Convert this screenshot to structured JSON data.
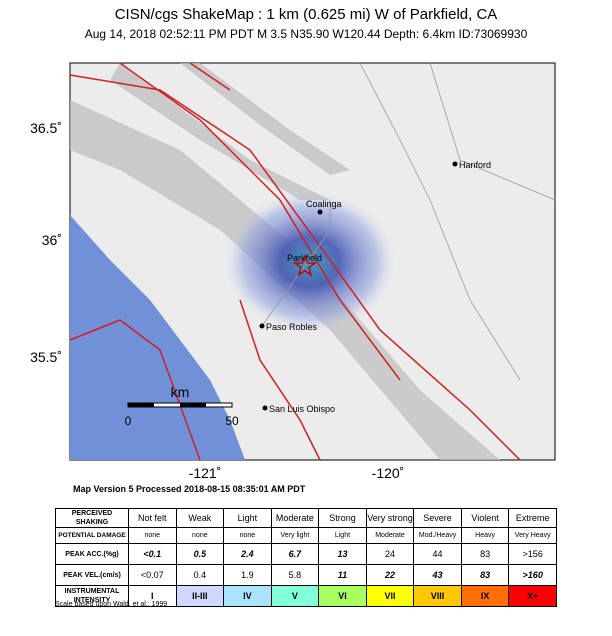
{
  "header": {
    "title": "CISN/cgs ShakeMap : 1 km (0.625 mi) W of Parkfield, CA",
    "subtitle": "Aug 14, 2018 02:52:11 PM PDT   M 3.5   N35.90 W120.44   Depth: 6.4km   ID:73069930"
  },
  "map": {
    "lat_labels": [
      "36.5˚",
      "36˚",
      "35.5˚"
    ],
    "lon_labels": [
      "-121˚",
      "-120˚"
    ],
    "places": [
      "Hanford",
      "Coalinga",
      "Parkfield",
      "Paso Robles",
      "San Luis Obispo"
    ],
    "scale": {
      "unit": "km",
      "start": "0",
      "end": "50"
    }
  },
  "map_version": "Map Version 5 Processed 2018-08-15 08:35:01 AM PDT",
  "table": {
    "rows": [
      [
        "PERCEIVED SHAKING",
        "Not felt",
        "Weak",
        "Light",
        "Moderate",
        "Strong",
        "Very strong",
        "Severe",
        "Violent",
        "Extreme"
      ],
      [
        "POTENTIAL DAMAGE",
        "none",
        "none",
        "none",
        "Very light",
        "Light",
        "Moderate",
        "Mod./Heavy",
        "Heavy",
        "Very Heavy"
      ],
      [
        "PEAK ACC.(%g)",
        "<0.1",
        "0.5",
        "2.4",
        "6.7",
        "13",
        "24",
        "44",
        "83",
        ">156"
      ],
      [
        "PEAK VEL.(cm/s)",
        "<0.07",
        "0.4",
        "1.9",
        "5.8",
        "11",
        "22",
        "43",
        "83",
        ">160"
      ],
      [
        "INSTRUMENTAL INTENSITY",
        "I",
        "II-III",
        "IV",
        "V",
        "VI",
        "VII",
        "VIII",
        "IX",
        "X+"
      ]
    ]
  },
  "footer": "Scale based upon Wald, et al.; 1999"
}
